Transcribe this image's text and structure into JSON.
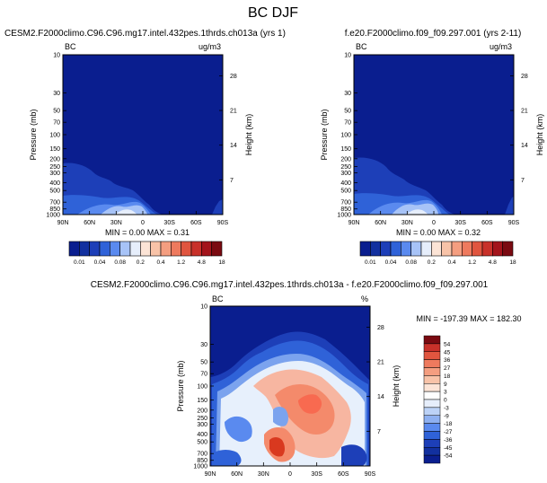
{
  "page": {
    "title": "BC DJF"
  },
  "panels": [
    {
      "id": "left",
      "title": "CESM2.F2000climo.C96.C96.mg17.intel.432pes.1thrds.ch013a (yrs 1)",
      "var_label": "BC",
      "units": "ug/m3",
      "stats": "MIN =    0.00  MAX =    0.31",
      "colorbar": {
        "labels": [
          "0.01",
          "0.04",
          "0.08",
          "0.2",
          "0.4",
          "1.2",
          "4.8",
          "18"
        ]
      }
    },
    {
      "id": "right",
      "title": "f.e20.F2000climo.f09_f09.297.001 (yrs 2-11)",
      "var_label": "BC",
      "units": "ug/m3",
      "stats": "MIN =    0.00  MAX =    0.32",
      "colorbar": {
        "labels": [
          "0.01",
          "0.04",
          "0.08",
          "0.2",
          "0.4",
          "1.2",
          "4.8",
          "18"
        ]
      }
    },
    {
      "id": "diff",
      "title": "CESM2.F2000climo.C96.C96.mg17.intel.432pes.1thrds.ch013a - f.e20.F2000climo.f09_f09.297.001",
      "var_label": "BC",
      "units": "%",
      "stats": "MIN = -197.39  MAX = 182.30",
      "colorbar": {
        "labels": [
          "54",
          "45",
          "36",
          "27",
          "18",
          "9",
          "3",
          "0",
          "-3",
          "-9",
          "-18",
          "-27",
          "-36",
          "-45",
          "-54"
        ]
      }
    }
  ],
  "axes": {
    "ylabel_left": "Pressure (mb)",
    "ylabel_right": "Height (km)",
    "pressure_ticks": [
      "10",
      "30",
      "50",
      "70",
      "100",
      "150",
      "200",
      "250",
      "300",
      "400",
      "500",
      "700",
      "850",
      "1000"
    ],
    "height_ticks": [
      "28",
      "21",
      "14",
      "7"
    ],
    "lat_ticks": [
      "90N",
      "60N",
      "30N",
      "0",
      "30S",
      "60S",
      "90S"
    ]
  },
  "chart_data": [
    {
      "type": "heatmap",
      "title": "CESM2.F2000climo.C96.C96.mg17.intel.432pes.1thrds.ch013a (yrs 1)",
      "variable": "BC",
      "units": "ug/m3",
      "x_ticks": [
        "90N",
        "60N",
        "30N",
        "0",
        "30S",
        "60S",
        "90S"
      ],
      "y_ticks_pressure_mb": [
        10,
        30,
        50,
        70,
        100,
        150,
        200,
        250,
        300,
        400,
        500,
        700,
        850,
        1000
      ],
      "y_ticks_height_km": [
        28,
        21,
        14,
        7
      ],
      "log_pressure_axis": true,
      "contour_levels": [
        "0.01",
        "0.04",
        "0.08",
        "0.2",
        "0.4",
        "1.2",
        "4.8",
        "18"
      ],
      "min": 0.0,
      "max": 0.31,
      "features": [
        {
          "region": "surface to ~200 mb, 90N-40N",
          "level": "0.01-0.04"
        },
        {
          "region": "surface to ~600 mb, 40N-0",
          "level": "0.04-0.2"
        },
        {
          "region": "near surface, ~20N-5N",
          "level": "0.2"
        },
        {
          "region": "above 200 mb and Southern Hemisphere aloft",
          "level": "<0.01"
        }
      ]
    },
    {
      "type": "heatmap",
      "title": "f.e20.F2000climo.f09_f09.297.001 (yrs 2-11)",
      "variable": "BC",
      "units": "ug/m3",
      "x_ticks": [
        "90N",
        "60N",
        "30N",
        "0",
        "30S",
        "60S",
        "90S"
      ],
      "y_ticks_pressure_mb": [
        10,
        30,
        50,
        70,
        100,
        150,
        200,
        250,
        300,
        400,
        500,
        700,
        850,
        1000
      ],
      "y_ticks_height_km": [
        28,
        21,
        14,
        7
      ],
      "log_pressure_axis": true,
      "contour_levels": [
        "0.01",
        "0.04",
        "0.08",
        "0.2",
        "0.4",
        "1.2",
        "4.8",
        "18"
      ],
      "min": 0.0,
      "max": 0.32,
      "features": [
        {
          "region": "surface to ~200 mb, 90N-40N",
          "level": "0.01-0.04"
        },
        {
          "region": "surface to ~600 mb, 40N-0",
          "level": "0.04-0.2"
        },
        {
          "region": "near surface, ~20N-5N",
          "level": "0.2"
        },
        {
          "region": "above 200 mb and Southern Hemisphere aloft",
          "level": "<0.01"
        }
      ]
    },
    {
      "type": "heatmap",
      "title": "CESM2.F2000climo.C96.C96.mg17.intel.432pes.1thrds.ch013a - f.e20.F2000climo.f09_f09.297.001",
      "variable": "BC",
      "units": "%",
      "x_ticks": [
        "90N",
        "60N",
        "30N",
        "0",
        "30S",
        "60S",
        "90S"
      ],
      "y_ticks_pressure_mb": [
        10,
        30,
        50,
        70,
        100,
        150,
        200,
        250,
        300,
        400,
        500,
        700,
        850,
        1000
      ],
      "y_ticks_height_km": [
        28,
        21,
        14,
        7
      ],
      "log_pressure_axis": true,
      "contour_levels": [
        54,
        45,
        36,
        27,
        18,
        9,
        3,
        0,
        -3,
        -9,
        -18,
        -27,
        -36,
        -45,
        -54
      ],
      "min": -197.39,
      "max": 182.3,
      "features": [
        {
          "region": "above ~50 mb, all latitudes",
          "level": "-54 (saturated negative)"
        },
        {
          "region": "150-400 mb, 30N-60S",
          "level": "9 to 27"
        },
        {
          "region": "~200 mb, ~20S",
          "level": "18 to 27"
        },
        {
          "region": "below 700 mb, near 30S",
          "level": "18 to 54"
        },
        {
          "region": "mid troposphere, 60N and 0",
          "level": "-9 to -27"
        },
        {
          "region": "high latitudes, lower troposphere",
          "level": "-3 to 3"
        }
      ]
    }
  ]
}
